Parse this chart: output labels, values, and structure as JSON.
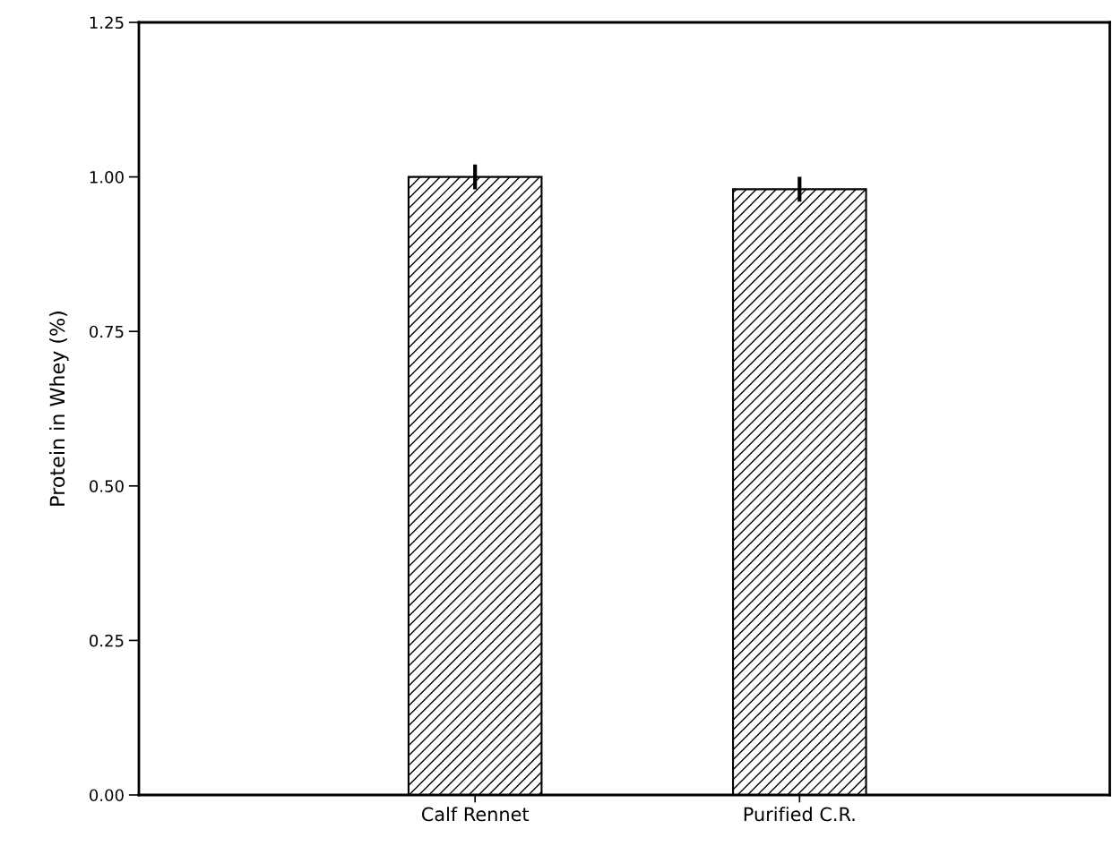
{
  "chart_data": {
    "type": "bar",
    "ylabel": "Protein in Whey (%)",
    "categories": [
      "Calf Rennet",
      "Purified C.R."
    ],
    "values": [
      1.0,
      0.98
    ],
    "errors": [
      0.02,
      0.02
    ],
    "color": "#000000",
    "ylim": [
      0,
      1.25
    ],
    "yticks": [
      {
        "value": 0,
        "label": "0.00"
      },
      {
        "value": 0.25,
        "label": "0.25"
      },
      {
        "value": 0.5,
        "label": "0.50"
      },
      {
        "value": 0.75,
        "label": "0.75"
      },
      {
        "value": 1.0,
        "label": "1.00"
      },
      {
        "value": 1.25,
        "label": "1.25"
      }
    ],
    "grid": false,
    "legend": false
  }
}
